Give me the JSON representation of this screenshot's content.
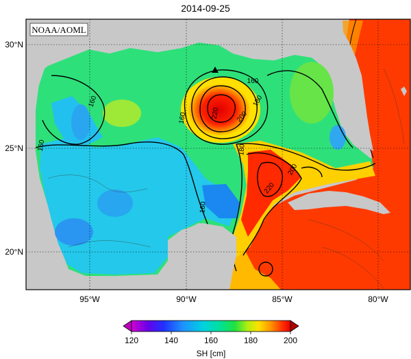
{
  "title": "2014-09-25",
  "credit": "NOAA/AOML",
  "axes": {
    "lat_ticks": [
      "30°N",
      "25°N",
      "20°N"
    ],
    "lon_ticks": [
      "95°W",
      "90°W",
      "85°W",
      "80°W"
    ]
  },
  "contour_labels": [
    "160",
    "160",
    "160",
    "160",
    "160",
    "180",
    "180",
    "200",
    "220",
    "220",
    "200"
  ],
  "colorbar": {
    "label": "SH [cm]",
    "ticks": [
      "120",
      "140",
      "160",
      "180",
      "200"
    ],
    "range": [
      120,
      200
    ],
    "colors": [
      "#d000d0",
      "#6a00e8",
      "#2030ff",
      "#1e90ff",
      "#00d0e0",
      "#00e0a0",
      "#20e040",
      "#b0ee10",
      "#ffe000",
      "#ff9000",
      "#ff3000",
      "#e80000"
    ]
  },
  "colors": {
    "land": "#c8c8c8",
    "water_bg": "#34d890",
    "warm": "#ff2a00",
    "cold": "#28b4f0"
  },
  "marker": "triangle-marker"
}
